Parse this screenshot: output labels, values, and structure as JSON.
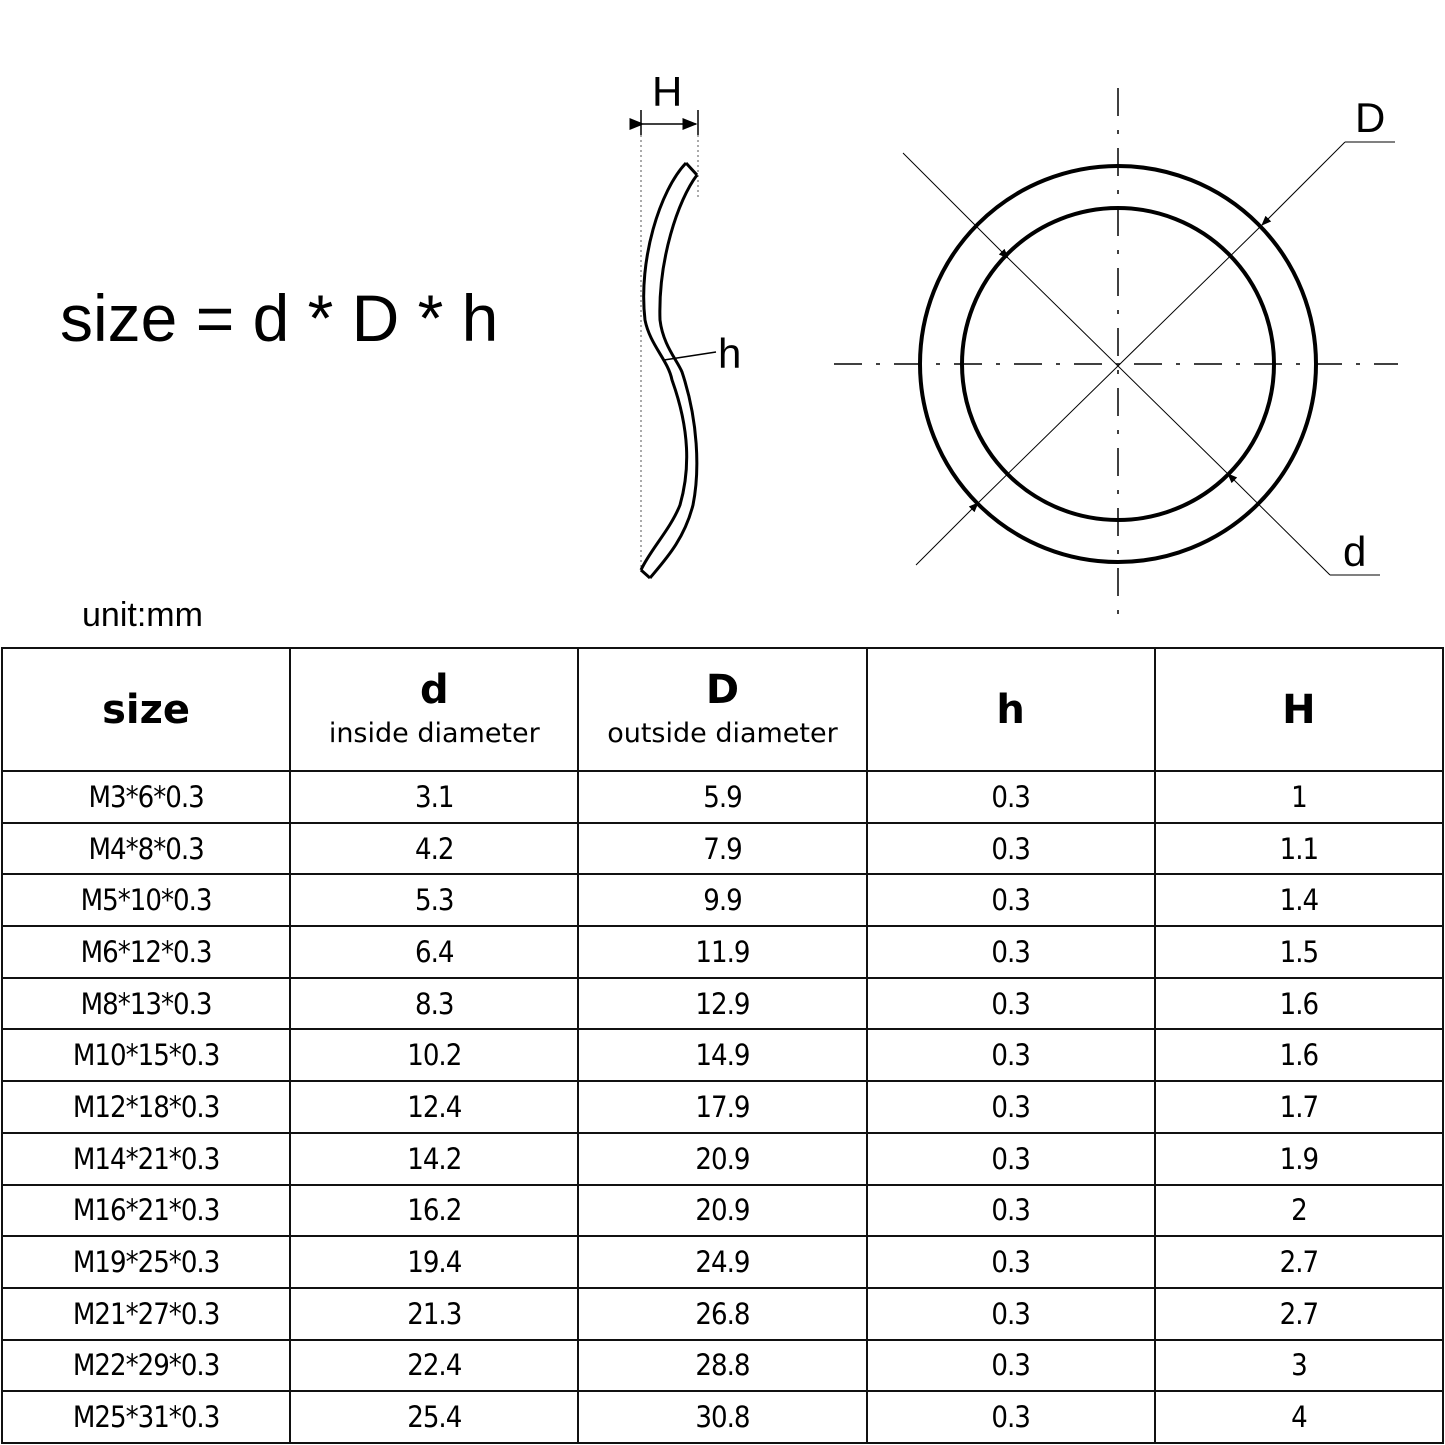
{
  "formula": "size = d * D * h",
  "unit": "unit:mm",
  "diagram_labels": {
    "H": "H",
    "h": "h",
    "D": "D",
    "d": "d"
  },
  "table": {
    "headers": [
      {
        "title": "size",
        "subtitle": ""
      },
      {
        "title": "d",
        "subtitle": "inside diameter"
      },
      {
        "title": "D",
        "subtitle": "outside diameter"
      },
      {
        "title": "h",
        "subtitle": ""
      },
      {
        "title": "H",
        "subtitle": ""
      }
    ],
    "rows": [
      [
        "M3*6*0.3",
        "3.1",
        "5.9",
        "0.3",
        "1"
      ],
      [
        "M4*8*0.3",
        "4.2",
        "7.9",
        "0.3",
        "1.1"
      ],
      [
        "M5*10*0.3",
        "5.3",
        "9.9",
        "0.3",
        "1.4"
      ],
      [
        "M6*12*0.3",
        "6.4",
        "11.9",
        "0.3",
        "1.5"
      ],
      [
        "M8*13*0.3",
        "8.3",
        "12.9",
        "0.3",
        "1.6"
      ],
      [
        "M10*15*0.3",
        "10.2",
        "14.9",
        "0.3",
        "1.6"
      ],
      [
        "M12*18*0.3",
        "12.4",
        "17.9",
        "0.3",
        "1.7"
      ],
      [
        "M14*21*0.3",
        "14.2",
        "20.9",
        "0.3",
        "1.9"
      ],
      [
        "M16*21*0.3",
        "16.2",
        "20.9",
        "0.3",
        "2"
      ],
      [
        "M19*25*0.3",
        "19.4",
        "24.9",
        "0.3",
        "2.7"
      ],
      [
        "M21*27*0.3",
        "21.3",
        "26.8",
        "0.3",
        "2.7"
      ],
      [
        "M22*29*0.3",
        "22.4",
        "28.8",
        "0.3",
        "3"
      ],
      [
        "M25*31*0.3",
        "25.4",
        "30.8",
        "0.3",
        "4"
      ]
    ]
  }
}
